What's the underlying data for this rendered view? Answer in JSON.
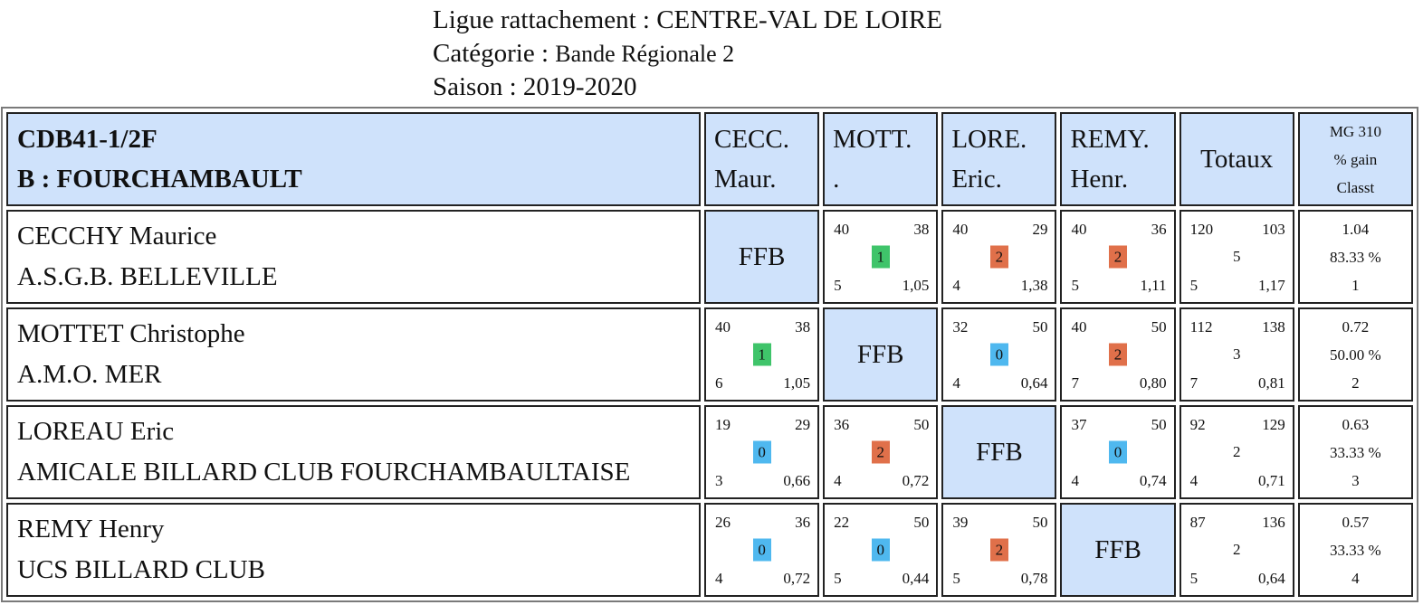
{
  "header": {
    "ligue": "Ligue rattachement : CENTRE-VAL DE LOIRE",
    "categorie_label": "Catégorie : ",
    "categorie_value": "Bande Régionale 2",
    "saison": "Saison : 2019-2020"
  },
  "table": {
    "title_line1": "CDB41-1/2F",
    "title_line2": "B : FOURCHAMBAULT",
    "columns": [
      {
        "line1": "CECC.",
        "line2": "Maur."
      },
      {
        "line1": "MOTT.",
        "line2": "."
      },
      {
        "line1": "LORE.",
        "line2": "Eric."
      },
      {
        "line1": "REMY.",
        "line2": "Henr."
      }
    ],
    "totaux_label": "Totaux",
    "mg_label": "MG 310",
    "gain_label": "% gain",
    "classt_label": "Classt",
    "ffb_label": "FFB",
    "badge_colors": {
      "0": "#4fb8ef",
      "1": "#3fc46a",
      "2": "#e0704a"
    },
    "rows": [
      {
        "name": "CECCHY Maurice",
        "club": "A.S.G.B. BELLEVILLE",
        "cells": [
          null,
          {
            "tl": "40",
            "tr": "38",
            "pts": "1",
            "bl": "5",
            "br": "1,05"
          },
          {
            "tl": "40",
            "tr": "29",
            "pts": "2",
            "bl": "4",
            "br": "1,38"
          },
          {
            "tl": "40",
            "tr": "36",
            "pts": "2",
            "bl": "5",
            "br": "1,11"
          }
        ],
        "total": {
          "tl": "120",
          "tr": "103",
          "mid": "5",
          "bl": "5",
          "br": "1,17"
        },
        "mg": "1.04",
        "gain": "83.33 %",
        "classt": "1"
      },
      {
        "name": "MOTTET Christophe",
        "club": "A.M.O. MER",
        "cells": [
          {
            "tl": "40",
            "tr": "38",
            "pts": "1",
            "bl": "6",
            "br": "1,05"
          },
          null,
          {
            "tl": "32",
            "tr": "50",
            "pts": "0",
            "bl": "4",
            "br": "0,64"
          },
          {
            "tl": "40",
            "tr": "50",
            "pts": "2",
            "bl": "7",
            "br": "0,80"
          }
        ],
        "total": {
          "tl": "112",
          "tr": "138",
          "mid": "3",
          "bl": "7",
          "br": "0,81"
        },
        "mg": "0.72",
        "gain": "50.00 %",
        "classt": "2"
      },
      {
        "name": "LOREAU Eric",
        "club": "AMICALE BILLARD CLUB FOURCHAMBAULTAISE",
        "cells": [
          {
            "tl": "19",
            "tr": "29",
            "pts": "0",
            "bl": "3",
            "br": "0,66"
          },
          {
            "tl": "36",
            "tr": "50",
            "pts": "2",
            "bl": "4",
            "br": "0,72"
          },
          null,
          {
            "tl": "37",
            "tr": "50",
            "pts": "0",
            "bl": "4",
            "br": "0,74"
          }
        ],
        "total": {
          "tl": "92",
          "tr": "129",
          "mid": "2",
          "bl": "4",
          "br": "0,71"
        },
        "mg": "0.63",
        "gain": "33.33 %",
        "classt": "3"
      },
      {
        "name": "REMY Henry",
        "club": "UCS BILLARD CLUB",
        "cells": [
          {
            "tl": "26",
            "tr": "36",
            "pts": "0",
            "bl": "4",
            "br": "0,72"
          },
          {
            "tl": "22",
            "tr": "50",
            "pts": "0",
            "bl": "5",
            "br": "0,44"
          },
          {
            "tl": "39",
            "tr": "50",
            "pts": "2",
            "bl": "5",
            "br": "0,78"
          },
          null
        ],
        "total": {
          "tl": "87",
          "tr": "136",
          "mid": "2",
          "bl": "5",
          "br": "0,64"
        },
        "mg": "0.57",
        "gain": "33.33 %",
        "classt": "4"
      }
    ]
  }
}
